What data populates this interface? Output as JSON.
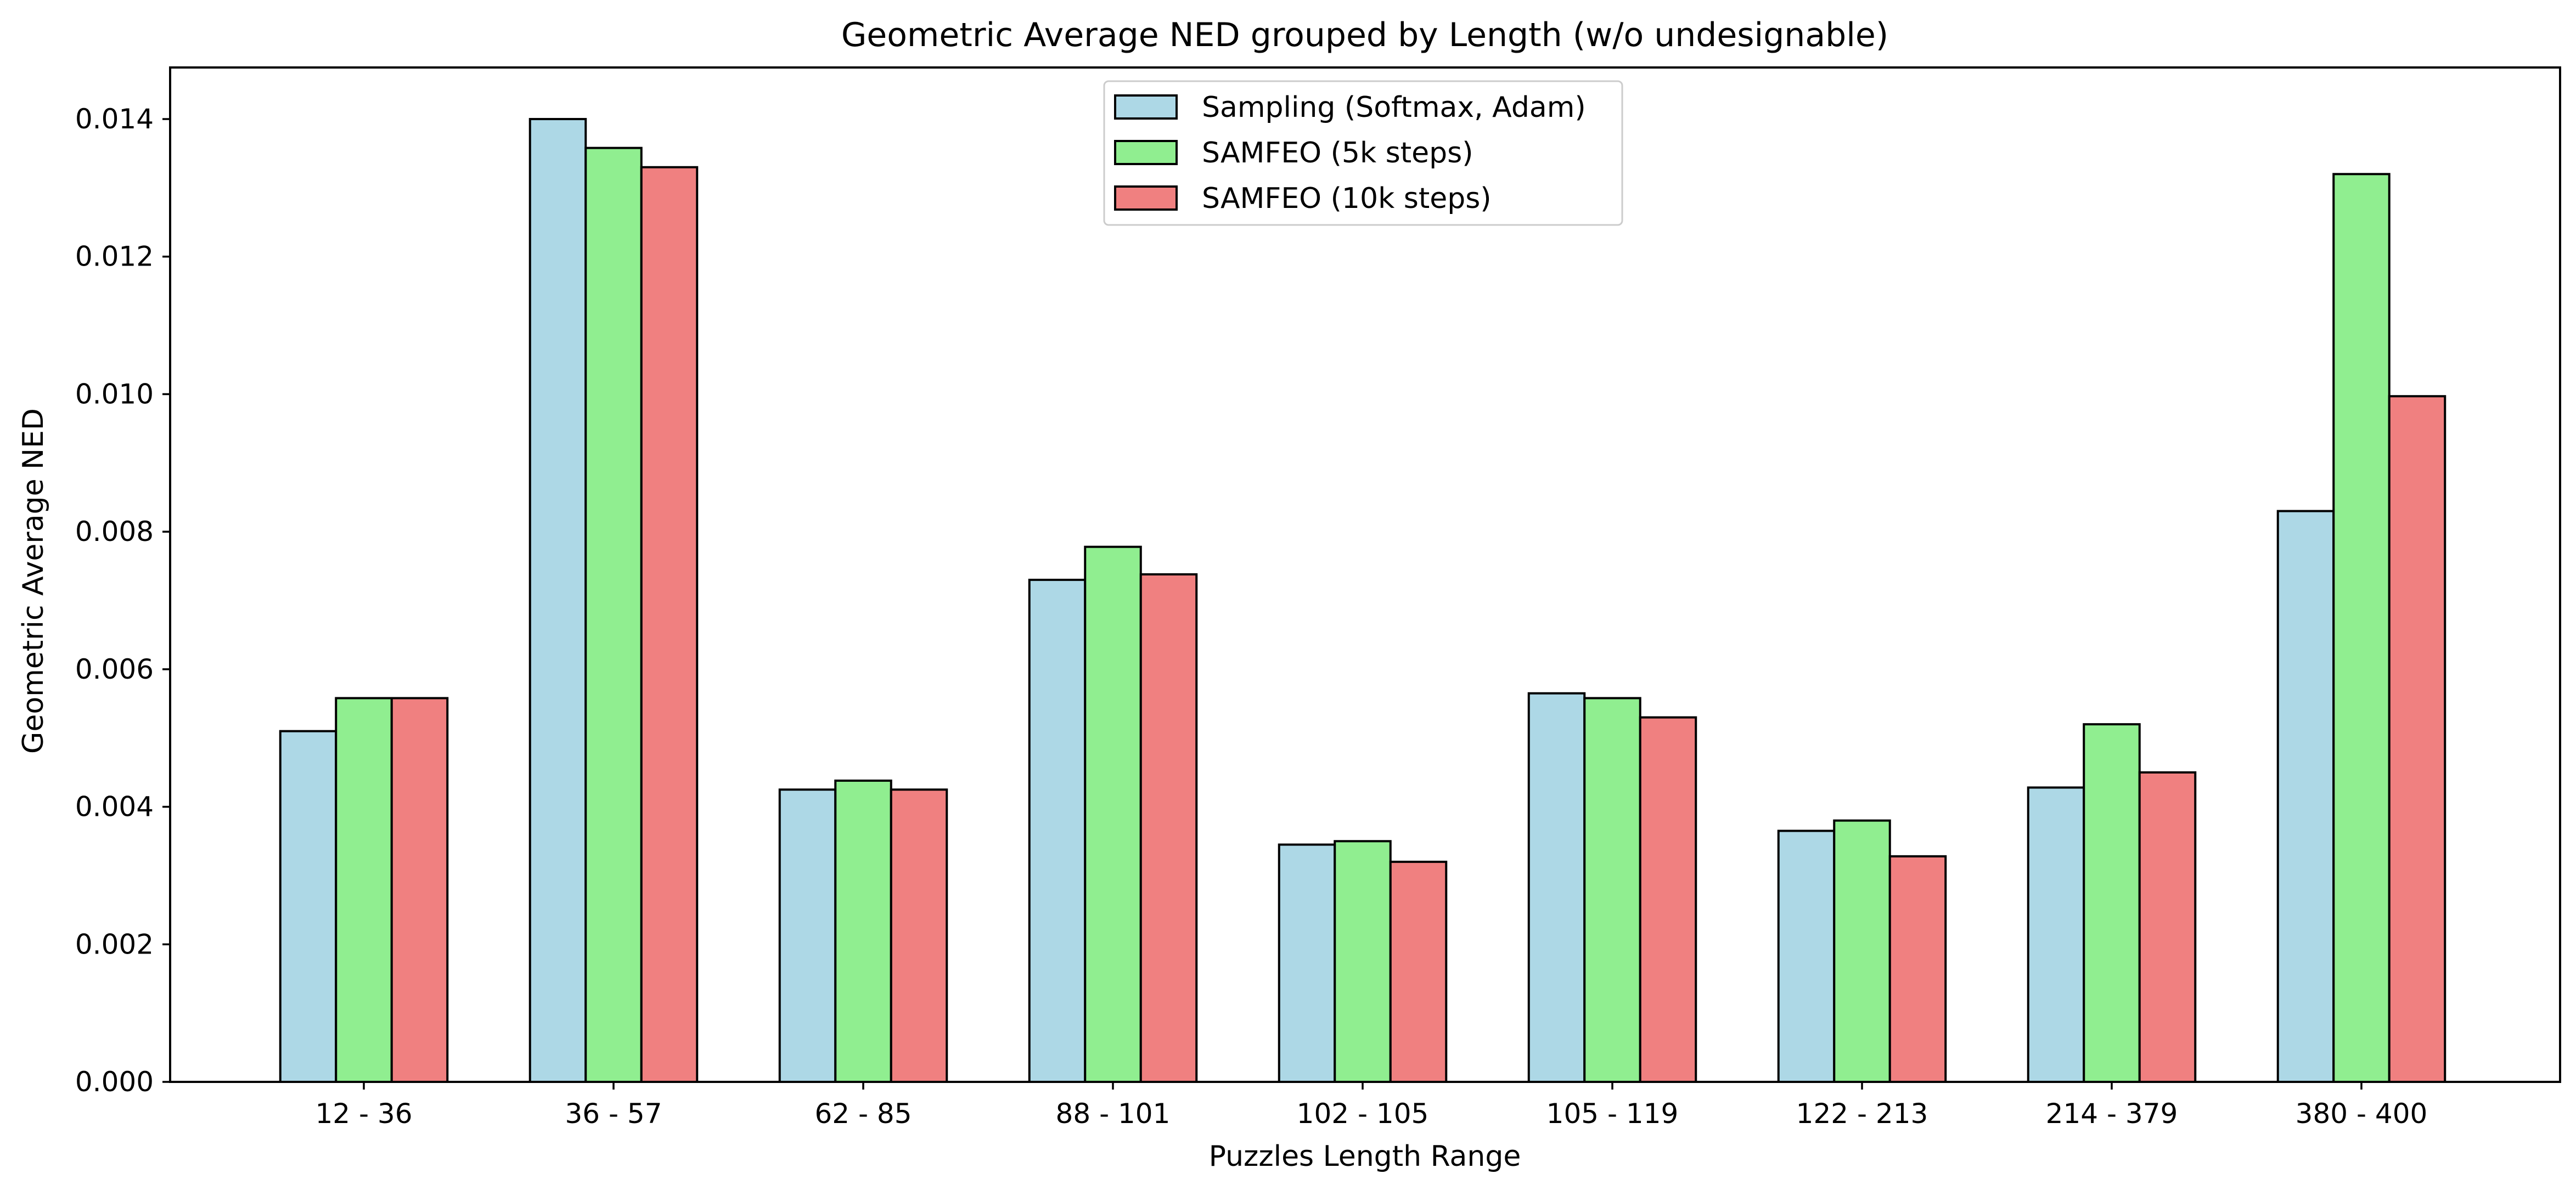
{
  "chart_data": {
    "type": "bar",
    "title": "Geometric Average NED grouped by Length (w/o undesignable)",
    "xlabel": "Puzzles Length Range",
    "ylabel": "Geometric Average NED",
    "categories": [
      "12 - 36",
      "36 - 57",
      "62 - 85",
      "88 - 101",
      "102 - 105",
      "105 - 119",
      "122 - 213",
      "214 - 379",
      "380 - 400"
    ],
    "series": [
      {
        "name": "Sampling (Softmax, Adam)",
        "color": "#add8e6",
        "values": [
          0.0051,
          0.014,
          0.00425,
          0.0073,
          0.00345,
          0.00565,
          0.00365,
          0.00428,
          0.0083
        ]
      },
      {
        "name": "SAMFEO (5k steps)",
        "color": "#90ee90",
        "values": [
          0.00558,
          0.01358,
          0.00438,
          0.00778,
          0.0035,
          0.00558,
          0.0038,
          0.0052,
          0.0132
        ]
      },
      {
        "name": "SAMFEO (10k steps)",
        "color": "#f08080",
        "values": [
          0.00558,
          0.0133,
          0.00425,
          0.00738,
          0.0032,
          0.0053,
          0.00328,
          0.0045,
          0.00997
        ]
      }
    ],
    "ylim": [
      0,
      0.01475
    ],
    "yticks": [
      "0.000",
      "0.002",
      "0.004",
      "0.006",
      "0.008",
      "0.010",
      "0.012",
      "0.014"
    ],
    "legend_position": "top-center",
    "grid": false
  }
}
